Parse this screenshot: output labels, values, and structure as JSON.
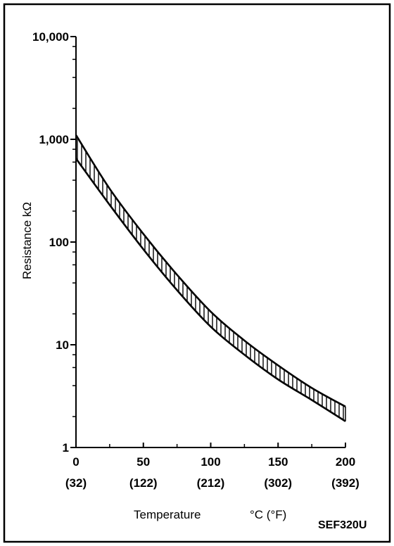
{
  "chart_data": {
    "type": "area",
    "title": "",
    "xlabel": "Temperature",
    "xunit_label": "°C (°F)",
    "ylabel": "Resistance kΩ",
    "yscale": "log",
    "xlim": [
      0,
      200
    ],
    "ylim": [
      1,
      10000
    ],
    "y_ticks": [
      {
        "value": 1,
        "label": "1"
      },
      {
        "value": 10,
        "label": "10"
      },
      {
        "value": 100,
        "label": "100"
      },
      {
        "value": 1000,
        "label": "1,000"
      },
      {
        "value": 10000,
        "label": "10,000"
      }
    ],
    "x_ticks": [
      {
        "value": 0,
        "label": "0",
        "label2": "(32)"
      },
      {
        "value": 50,
        "label": "50",
        "label2": "(122)"
      },
      {
        "value": 100,
        "label": "100",
        "label2": "(212)"
      },
      {
        "value": 150,
        "label": "150",
        "label2": "(302)"
      },
      {
        "value": 200,
        "label": "200",
        "label2": "(392)"
      }
    ],
    "series": [
      {
        "x": [
          0,
          25,
          50,
          75,
          100,
          125,
          150,
          175,
          200
        ],
        "values": [
          1100,
          330,
          120,
          48,
          21,
          11,
          6.3,
          3.8,
          2.5
        ]
      },
      {
        "x": [
          0,
          25,
          50,
          75,
          100,
          125,
          150,
          175,
          200
        ],
        "values": [
          650,
          230,
          85,
          34,
          15,
          8,
          4.6,
          2.9,
          1.8
        ]
      }
    ],
    "band_fill": "vertical-hatch",
    "grid": false,
    "legend": "none"
  },
  "figure_code": "SEF320U",
  "colors": {
    "line": "#000000",
    "background": "#ffffff"
  }
}
